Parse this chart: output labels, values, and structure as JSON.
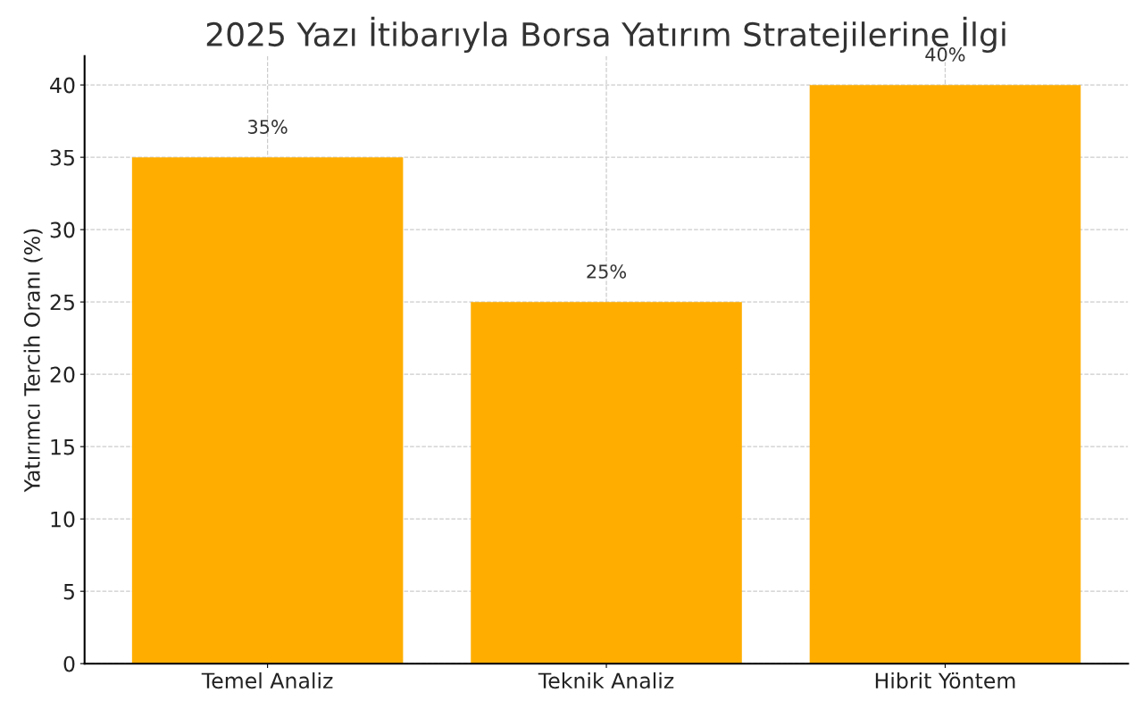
{
  "chart_data": {
    "type": "bar",
    "title": "2025 Yazı İtibarıyla Borsa Yatırım Stratejilerine İlgi",
    "ylabel": "Yatırımcı Tercih Oranı (%)",
    "categories": [
      "Temel Analiz",
      "Teknik Analiz",
      "Hibrit Yöntem"
    ],
    "values": [
      35,
      25,
      40
    ],
    "color": "#ffae00",
    "value_labels": [
      "35%",
      "25%",
      "40%"
    ],
    "ylim": [
      0,
      42
    ],
    "yticks": [
      0,
      5,
      10,
      15,
      20,
      25,
      30,
      35,
      40
    ],
    "grid": true,
    "line_style": "dashed"
  }
}
